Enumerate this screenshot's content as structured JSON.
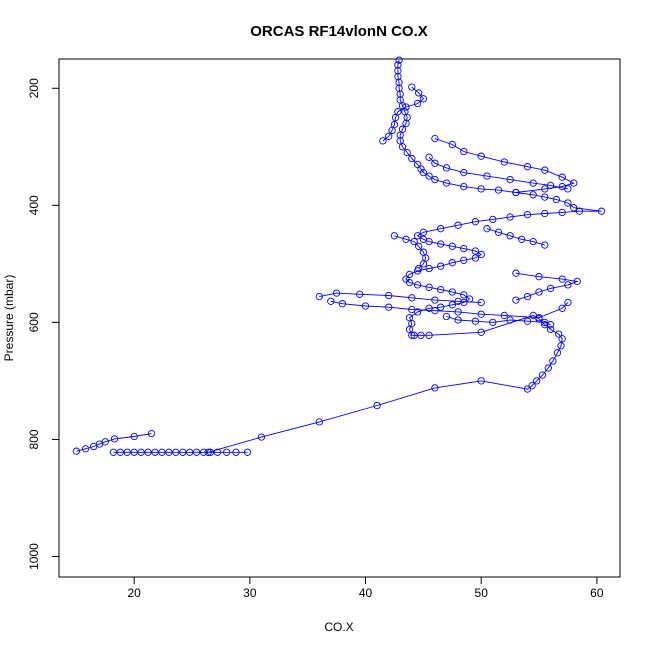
{
  "chart_data": {
    "type": "line",
    "title": "ORCAS RF14vlonN CO.X",
    "xlabel": "CO.X",
    "ylabel": "Pressure (mbar)",
    "xlim": [
      13.5,
      62
    ],
    "ylim": [
      1035,
      150
    ],
    "y_reversed": true,
    "grid": false,
    "legend": "none",
    "marker": "open-circle",
    "line": true,
    "xticks": [
      20,
      30,
      40,
      50,
      60
    ],
    "yticks": [
      200,
      400,
      600,
      800,
      1000
    ],
    "series": [
      {
        "color": "#0000ff",
        "points": [
          [
            18.2,
            822
          ],
          [
            18.8,
            822
          ],
          [
            19.4,
            822
          ],
          [
            20.0,
            822
          ],
          [
            20.6,
            822
          ],
          [
            21.2,
            822
          ],
          [
            21.8,
            822
          ],
          [
            22.4,
            822
          ],
          [
            23.0,
            822
          ],
          [
            23.6,
            822
          ],
          [
            24.2,
            822
          ],
          [
            24.8,
            822
          ],
          [
            25.4,
            822
          ],
          [
            26.0,
            822
          ],
          [
            26.6,
            822
          ],
          [
            27.2,
            822
          ],
          [
            28.0,
            822
          ],
          [
            28.8,
            822
          ],
          [
            29.8,
            822
          ],
          [
            26.4,
            822
          ],
          [
            31.0,
            796
          ],
          [
            36.0,
            770
          ],
          [
            41.0,
            742
          ],
          [
            46.0,
            712
          ],
          [
            50.0,
            700
          ],
          [
            54.0,
            714
          ],
          [
            54.4,
            708
          ],
          [
            54.8,
            700
          ],
          [
            55.3,
            690
          ],
          [
            55.8,
            678
          ],
          [
            56.2,
            666
          ],
          [
            56.6,
            652
          ],
          [
            56.9,
            640
          ],
          [
            57.0,
            628
          ],
          [
            56.7,
            620
          ],
          [
            56.0,
            612
          ],
          [
            55.5,
            604
          ],
          [
            55.0,
            594
          ],
          [
            54.5,
            588
          ],
          [
            50.0,
            617
          ],
          [
            45.5,
            622
          ],
          [
            44.8,
            622
          ],
          [
            44.2,
            622
          ],
          [
            44.0,
            622
          ],
          [
            43.8,
            612
          ],
          [
            44.0,
            602
          ],
          [
            43.8,
            592
          ],
          [
            44.5,
            582
          ],
          [
            45.5,
            576
          ],
          [
            46.5,
            574
          ],
          [
            47.5,
            570
          ],
          [
            48.5,
            566
          ],
          [
            49.0,
            560
          ],
          [
            48.5,
            553
          ],
          [
            47.5,
            548
          ],
          [
            46.5,
            544
          ],
          [
            45.5,
            540
          ],
          [
            44.5,
            536
          ],
          [
            43.8,
            532
          ],
          [
            43.5,
            526
          ],
          [
            43.8,
            518
          ],
          [
            44.5,
            512
          ],
          [
            45.5,
            508
          ],
          [
            46.5,
            504
          ],
          [
            47.5,
            498
          ],
          [
            48.5,
            494
          ],
          [
            49.5,
            490
          ],
          [
            50.0,
            484
          ],
          [
            49.5,
            478
          ],
          [
            48.5,
            474
          ],
          [
            47.5,
            470
          ],
          [
            46.5,
            466
          ],
          [
            45.5,
            462
          ],
          [
            45.0,
            458
          ],
          [
            44.5,
            452
          ],
          [
            45.0,
            446
          ],
          [
            46.5,
            440
          ],
          [
            48.0,
            434
          ],
          [
            49.5,
            428
          ],
          [
            51.0,
            424
          ],
          [
            52.5,
            420
          ],
          [
            54.0,
            416
          ],
          [
            55.5,
            414
          ],
          [
            57.0,
            412
          ],
          [
            58.5,
            410
          ],
          [
            60.4,
            410
          ],
          [
            58.0,
            404
          ],
          [
            57.5,
            396
          ],
          [
            56.5,
            390
          ],
          [
            55.5,
            386
          ],
          [
            54.5,
            382
          ],
          [
            53.0,
            378
          ],
          [
            51.5,
            374
          ],
          [
            50.0,
            372
          ],
          [
            48.5,
            368
          ],
          [
            47.0,
            362
          ],
          [
            46.0,
            356
          ],
          [
            45.5,
            350
          ],
          [
            45.0,
            344
          ],
          [
            44.8,
            338
          ],
          [
            44.5,
            330
          ],
          [
            44.0,
            320
          ],
          [
            43.6,
            310
          ],
          [
            43.2,
            300
          ],
          [
            43.0,
            290
          ],
          [
            43.0,
            280
          ],
          [
            43.2,
            270
          ],
          [
            43.5,
            260
          ],
          [
            43.6,
            250
          ],
          [
            43.4,
            240
          ],
          [
            43.2,
            230
          ],
          [
            43.0,
            220
          ],
          [
            43.0,
            210
          ],
          [
            42.9,
            200
          ],
          [
            42.9,
            190
          ],
          [
            42.8,
            180
          ],
          [
            42.8,
            170
          ],
          [
            42.8,
            160
          ],
          [
            42.9,
            152
          ]
        ]
      },
      {
        "color": "#0000ff",
        "points": [
          [
            15.0,
            820
          ],
          [
            15.8,
            816
          ],
          [
            16.5,
            812
          ],
          [
            17.0,
            808
          ],
          [
            17.5,
            804
          ],
          [
            18.3,
            799
          ],
          [
            20.0,
            795
          ],
          [
            21.5,
            790
          ]
        ]
      },
      {
        "color": "#0000ff",
        "points": [
          [
            36.0,
            556
          ],
          [
            37.5,
            550
          ],
          [
            39.5,
            552
          ],
          [
            42.0,
            554
          ],
          [
            44.0,
            558
          ],
          [
            46.0,
            562
          ],
          [
            48.0,
            564
          ],
          [
            50.0,
            566
          ]
        ]
      },
      {
        "color": "#0000ff",
        "points": [
          [
            37.0,
            564
          ],
          [
            38.0,
            568
          ],
          [
            40.0,
            572
          ],
          [
            42.0,
            574
          ],
          [
            44.0,
            578
          ],
          [
            46.0,
            580
          ],
          [
            48.0,
            582
          ],
          [
            50.0,
            586
          ],
          [
            52.0,
            588
          ],
          [
            55.0,
            592
          ],
          [
            57.0,
            576
          ],
          [
            57.5,
            566
          ]
        ]
      },
      {
        "color": "#0000ff",
        "points": [
          [
            46.0,
            286
          ],
          [
            47.5,
            296
          ],
          [
            48.5,
            308
          ],
          [
            50.0,
            316
          ],
          [
            52.0,
            326
          ],
          [
            54.0,
            334
          ],
          [
            55.5,
            340
          ],
          [
            57.0,
            352
          ],
          [
            58.0,
            362
          ],
          [
            57.0,
            368
          ],
          [
            55.5,
            372
          ],
          [
            53.0,
            378
          ]
        ]
      },
      {
        "color": "#0000ff",
        "points": [
          [
            45.5,
            318
          ],
          [
            46.0,
            328
          ],
          [
            47.0,
            336
          ],
          [
            48.5,
            344
          ],
          [
            50.5,
            350
          ],
          [
            52.5,
            356
          ],
          [
            54.5,
            362
          ],
          [
            56.0,
            366
          ],
          [
            57.5,
            372
          ]
        ]
      },
      {
        "color": "#0000ff",
        "points": [
          [
            53.0,
            516
          ],
          [
            55.0,
            522
          ],
          [
            57.0,
            526
          ],
          [
            58.3,
            530
          ],
          [
            57.5,
            536
          ],
          [
            56.0,
            542
          ],
          [
            55.0,
            548
          ],
          [
            54.0,
            556
          ],
          [
            53.0,
            562
          ]
        ]
      },
      {
        "color": "#0000ff",
        "points": [
          [
            42.5,
            452
          ],
          [
            43.5,
            458
          ],
          [
            44.2,
            462
          ],
          [
            44.6,
            470
          ],
          [
            45.0,
            480
          ],
          [
            45.2,
            490
          ],
          [
            45.0,
            500
          ],
          [
            44.6,
            508
          ]
        ]
      },
      {
        "color": "#0000ff",
        "points": [
          [
            50.5,
            440
          ],
          [
            51.5,
            446
          ],
          [
            52.5,
            452
          ],
          [
            53.5,
            458
          ],
          [
            54.5,
            462
          ],
          [
            55.5,
            468
          ]
        ]
      },
      {
        "color": "#0000ff",
        "points": [
          [
            41.5,
            290
          ],
          [
            42.0,
            282
          ],
          [
            42.3,
            272
          ],
          [
            42.5,
            262
          ],
          [
            42.6,
            250
          ],
          [
            42.8,
            240
          ],
          [
            43.5,
            232
          ],
          [
            44.5,
            226
          ],
          [
            45.0,
            218
          ],
          [
            44.6,
            208
          ],
          [
            44.0,
            198
          ]
        ]
      },
      {
        "color": "#0000ff",
        "points": [
          [
            47.0,
            590
          ],
          [
            48.0,
            596
          ],
          [
            49.5,
            598
          ],
          [
            51.0,
            600
          ],
          [
            52.5,
            596
          ],
          [
            54.0,
            598
          ],
          [
            55.5,
            600
          ],
          [
            56.0,
            604
          ]
        ]
      }
    ]
  }
}
